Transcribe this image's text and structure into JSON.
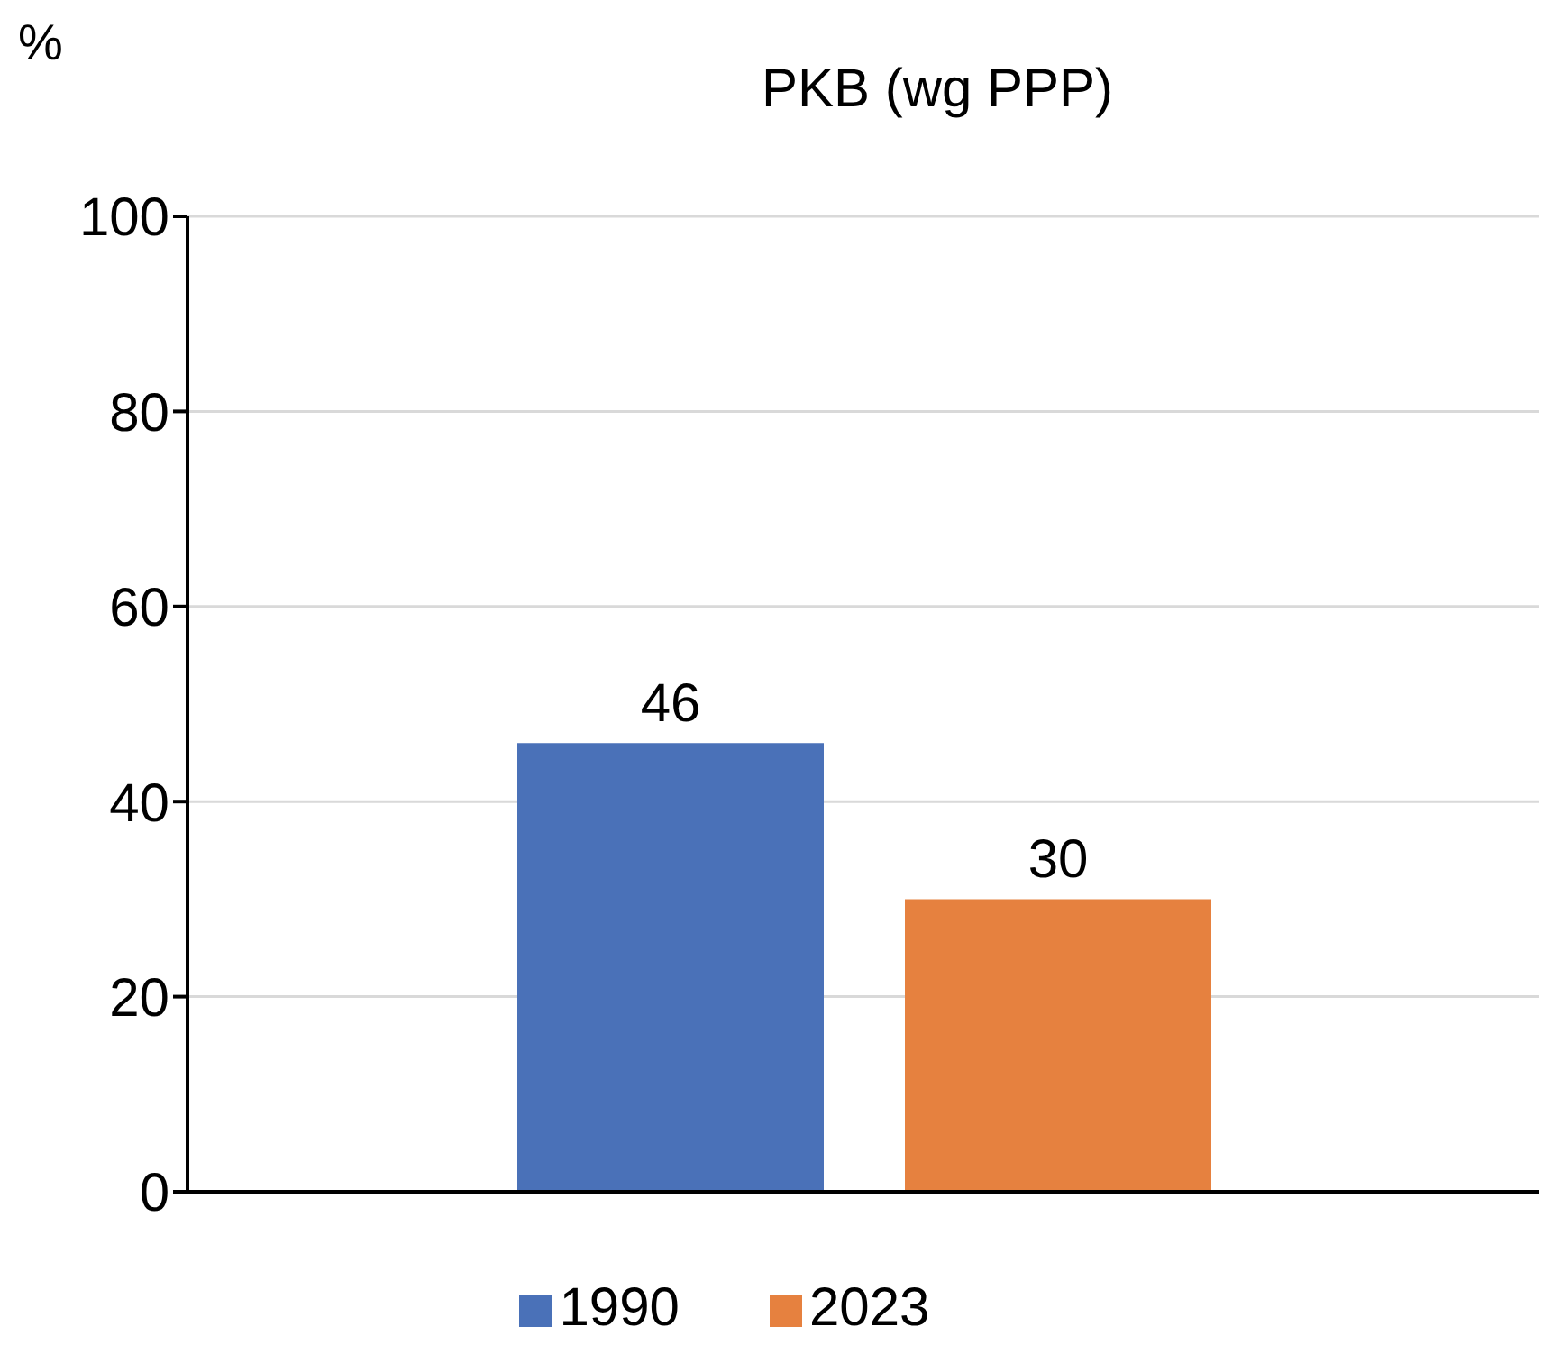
{
  "chart_data": {
    "type": "bar",
    "title": "PKB (wg PPP)",
    "ylabel": "%",
    "categories": [
      null
    ],
    "series": [
      {
        "name": "1990",
        "color": "#4a71b8",
        "values": [
          46
        ]
      },
      {
        "name": "2023",
        "color": "#e6813f",
        "values": [
          30
        ]
      }
    ],
    "ylim": [
      0,
      100
    ],
    "yticks": [
      0,
      20,
      40,
      60,
      80,
      100
    ],
    "grid": "y",
    "legend": "bottom",
    "data_labels": true
  }
}
